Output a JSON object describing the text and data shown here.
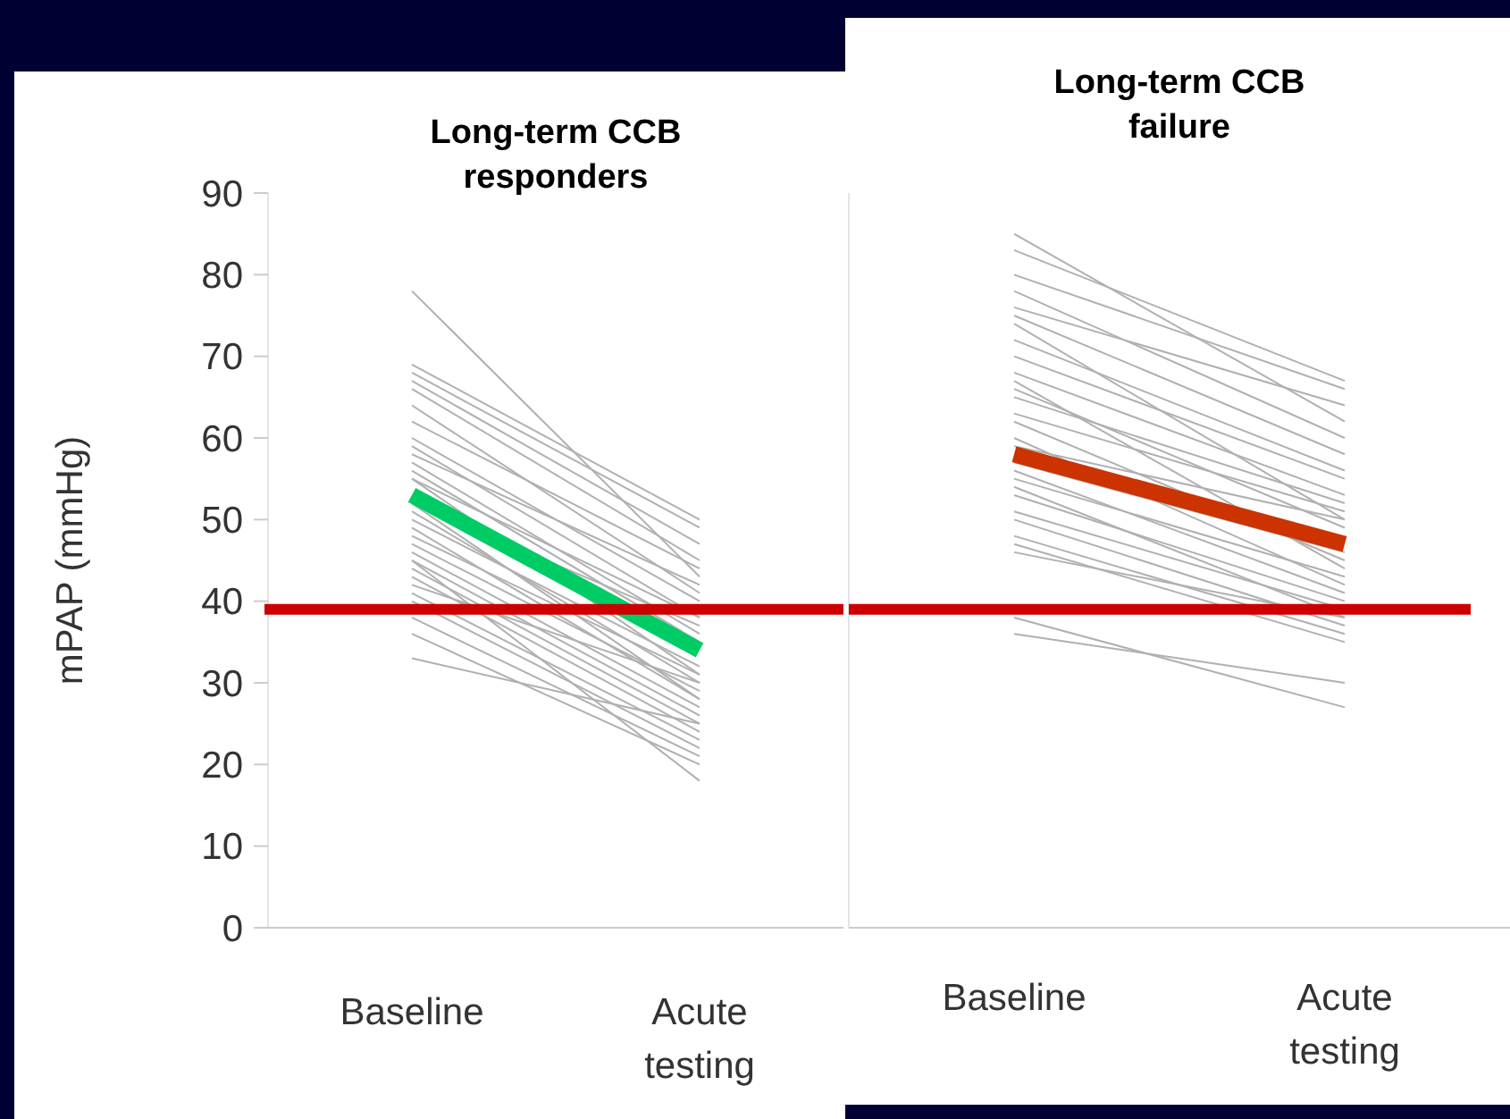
{
  "chart_data": [
    {
      "type": "line",
      "title": "Long-term CCB responders",
      "ylabel": "mPAP (mmHg)",
      "categories": [
        "Baseline",
        "Acute testing"
      ],
      "ylim": [
        0,
        90
      ],
      "yticks": [
        0,
        10,
        20,
        30,
        40,
        50,
        60,
        70,
        80,
        90
      ],
      "grid": false,
      "marker": "none",
      "ref_lines": [
        {
          "axis": "y",
          "value": 39,
          "color": "#cc0000"
        }
      ],
      "series": [
        {
          "color": "#b0b0b0",
          "values": [
            78,
            43
          ]
        },
        {
          "color": "#b0b0b0",
          "values": [
            69,
            50
          ]
        },
        {
          "color": "#b0b0b0",
          "values": [
            68,
            49
          ]
        },
        {
          "color": "#b0b0b0",
          "values": [
            67,
            47
          ]
        },
        {
          "color": "#b0b0b0",
          "values": [
            66,
            45
          ]
        },
        {
          "color": "#b0b0b0",
          "values": [
            64,
            41
          ]
        },
        {
          "color": "#b0b0b0",
          "values": [
            62,
            44
          ]
        },
        {
          "color": "#b0b0b0",
          "values": [
            60,
            40
          ]
        },
        {
          "color": "#b0b0b0",
          "values": [
            59,
            38
          ]
        },
        {
          "color": "#b0b0b0",
          "values": [
            58,
            42
          ]
        },
        {
          "color": "#b0b0b0",
          "values": [
            57,
            36
          ]
        },
        {
          "color": "#b0b0b0",
          "values": [
            56,
            35
          ]
        },
        {
          "color": "#b0b0b0",
          "values": [
            55,
            38
          ]
        },
        {
          "color": "#b0b0b0",
          "values": [
            55,
            31
          ]
        },
        {
          "color": "#b0b0b0",
          "values": [
            52,
            28
          ]
        },
        {
          "color": "#b0b0b0",
          "values": [
            52,
            37
          ]
        },
        {
          "color": "#b0b0b0",
          "values": [
            51,
            30
          ]
        },
        {
          "color": "#b0b0b0",
          "values": [
            50,
            32
          ]
        },
        {
          "color": "#b0b0b0",
          "values": [
            49,
            28
          ]
        },
        {
          "color": "#b0b0b0",
          "values": [
            48,
            31
          ]
        },
        {
          "color": "#b0b0b0",
          "values": [
            47,
            29
          ]
        },
        {
          "color": "#b0b0b0",
          "values": [
            46,
            27
          ]
        },
        {
          "color": "#b0b0b0",
          "values": [
            45,
            26
          ]
        },
        {
          "color": "#b0b0b0",
          "values": [
            44,
            25
          ]
        },
        {
          "color": "#b0b0b0",
          "values": [
            43,
            24
          ]
        },
        {
          "color": "#b0b0b0",
          "values": [
            42,
            30
          ]
        },
        {
          "color": "#b0b0b0",
          "values": [
            41,
            23
          ]
        },
        {
          "color": "#b0b0b0",
          "values": [
            40,
            22
          ]
        },
        {
          "color": "#b0b0b0",
          "values": [
            38,
            21
          ]
        },
        {
          "color": "#b0b0b0",
          "values": [
            36,
            20
          ]
        },
        {
          "color": "#b0b0b0",
          "values": [
            33,
            25
          ]
        },
        {
          "color": "#b0b0b0",
          "values": [
            45,
            18
          ]
        },
        {
          "color": "#00cc66",
          "values": [
            53,
            34
          ]
        }
      ]
    },
    {
      "type": "line",
      "title": "Long-term CCB failure",
      "categories": [
        "Baseline",
        "Acute testing"
      ],
      "ylim": [
        0,
        90
      ],
      "tick_labels": "x",
      "grid": false,
      "marker": "none",
      "ref_lines": [
        {
          "axis": "y",
          "value": 39,
          "color": "#cc0000"
        }
      ],
      "series": [
        {
          "color": "#b0b0b0",
          "values": [
            85,
            62
          ]
        },
        {
          "color": "#b0b0b0",
          "values": [
            83,
            67
          ]
        },
        {
          "color": "#b0b0b0",
          "values": [
            80,
            66
          ]
        },
        {
          "color": "#b0b0b0",
          "values": [
            78,
            60
          ]
        },
        {
          "color": "#b0b0b0",
          "values": [
            76,
            64
          ]
        },
        {
          "color": "#b0b0b0",
          "values": [
            75,
            58
          ]
        },
        {
          "color": "#b0b0b0",
          "values": [
            74,
            50
          ]
        },
        {
          "color": "#b0b0b0",
          "values": [
            72,
            56
          ]
        },
        {
          "color": "#b0b0b0",
          "values": [
            70,
            55
          ]
        },
        {
          "color": "#b0b0b0",
          "values": [
            68,
            53
          ]
        },
        {
          "color": "#b0b0b0",
          "values": [
            67,
            44
          ]
        },
        {
          "color": "#b0b0b0",
          "values": [
            66,
            49
          ]
        },
        {
          "color": "#b0b0b0",
          "values": [
            65,
            52
          ]
        },
        {
          "color": "#b0b0b0",
          "values": [
            63,
            51
          ]
        },
        {
          "color": "#b0b0b0",
          "values": [
            62,
            45
          ]
        },
        {
          "color": "#b0b0b0",
          "values": [
            60,
            42
          ]
        },
        {
          "color": "#b0b0b0",
          "values": [
            59,
            50
          ]
        },
        {
          "color": "#b0b0b0",
          "values": [
            57,
            46
          ]
        },
        {
          "color": "#b0b0b0",
          "values": [
            56,
            41
          ]
        },
        {
          "color": "#b0b0b0",
          "values": [
            55,
            43
          ]
        },
        {
          "color": "#b0b0b0",
          "values": [
            54,
            38
          ]
        },
        {
          "color": "#b0b0b0",
          "values": [
            53,
            40
          ]
        },
        {
          "color": "#b0b0b0",
          "values": [
            51,
            39
          ]
        },
        {
          "color": "#b0b0b0",
          "values": [
            50,
            37
          ]
        },
        {
          "color": "#b0b0b0",
          "values": [
            48,
            36
          ]
        },
        {
          "color": "#b0b0b0",
          "values": [
            47,
            35
          ]
        },
        {
          "color": "#b0b0b0",
          "values": [
            46,
            38
          ]
        },
        {
          "color": "#b0b0b0",
          "values": [
            38,
            27
          ]
        },
        {
          "color": "#b0b0b0",
          "values": [
            36,
            30
          ]
        },
        {
          "color": "#cc3300",
          "values": [
            58,
            47
          ]
        }
      ]
    }
  ]
}
